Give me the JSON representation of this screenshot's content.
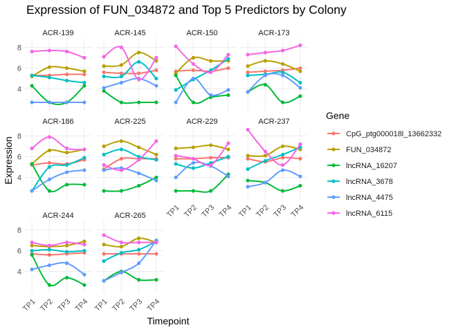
{
  "chart_data": {
    "type": "line",
    "title": "Expression of FUN_034872 and Top 5 Predictors by Colony",
    "xlabel": "Timepoint",
    "ylabel": "Expression",
    "legend_title": "Gene",
    "legend_position": "right",
    "x": [
      "TP1",
      "TP2",
      "TP3",
      "TP4"
    ],
    "y_ticks": [
      4,
      6,
      8
    ],
    "ylim": [
      1.9,
      8.9
    ],
    "grid": true,
    "series_meta": [
      {
        "name": "CpG_ptg000018l_13662332",
        "color": "#F8766D"
      },
      {
        "name": "FUN_034872",
        "color": "#B79F00"
      },
      {
        "name": "lncRNA_16207",
        "color": "#00BA38"
      },
      {
        "name": "lncRNA_3678",
        "color": "#00BFC4"
      },
      {
        "name": "lncRNA_4475",
        "color": "#619CFF"
      },
      {
        "name": "lncRNA_6115",
        "color": "#F564E3"
      }
    ],
    "panels": [
      {
        "colony": "ACR-139",
        "values": [
          [
            5.3,
            5.3,
            5.4,
            5.4
          ],
          [
            5.2,
            6.1,
            6.0,
            5.7
          ],
          [
            4.3,
            2.7,
            2.7,
            4.3
          ],
          [
            5.3,
            5.1,
            4.8,
            4.6
          ],
          [
            2.7,
            2.7,
            2.7,
            2.7
          ],
          [
            7.6,
            7.7,
            7.6,
            7.0
          ]
        ]
      },
      {
        "colony": "ACR-145",
        "values": [
          [
            5.6,
            5.5,
            5.5,
            5.8
          ],
          [
            6.2,
            6.3,
            7.5,
            6.7
          ],
          [
            3.8,
            2.7,
            2.7,
            2.7
          ],
          [
            5.2,
            5.2,
            6.6,
            5.0
          ],
          [
            4.1,
            4.6,
            5.0,
            4.3
          ],
          [
            7.1,
            8.0,
            4.9,
            7.0
          ]
        ]
      },
      {
        "colony": "ACR-150",
        "values": [
          [
            5.7,
            5.8,
            5.7,
            6.0
          ],
          [
            5.5,
            7.0,
            6.7,
            6.7
          ],
          [
            5.3,
            2.7,
            3.2,
            3.4
          ],
          [
            3.9,
            4.9,
            5.8,
            6.9
          ],
          [
            2.7,
            5.0,
            3.4,
            3.9
          ],
          [
            8.1,
            6.4,
            5.6,
            7.3
          ]
        ]
      },
      {
        "colony": "ACR-173",
        "values": [
          [
            5.6,
            5.7,
            5.8,
            6.0
          ],
          [
            6.2,
            6.7,
            6.4,
            5.7
          ],
          [
            3.7,
            4.4,
            2.7,
            3.3
          ],
          [
            5.3,
            5.4,
            5.6,
            4.6
          ],
          [
            3.7,
            5.3,
            5.3,
            4.1
          ],
          [
            7.3,
            7.5,
            7.7,
            8.2
          ]
        ]
      },
      {
        "colony": "ACR-186",
        "values": [
          [
            5.2,
            5.4,
            5.3,
            5.7
          ],
          [
            5.3,
            6.6,
            6.4,
            6.7
          ],
          [
            5.3,
            2.7,
            3.3,
            3.3
          ],
          [
            2.7,
            5.0,
            5.2,
            5.9
          ],
          [
            2.7,
            3.8,
            4.5,
            4.7
          ],
          [
            6.8,
            7.9,
            6.8,
            6.7
          ]
        ]
      },
      {
        "colony": "ACR-225",
        "values": [
          [
            4.8,
            5.8,
            5.8,
            5.8
          ],
          [
            7.0,
            7.5,
            6.9,
            6.2
          ],
          [
            2.7,
            2.7,
            3.2,
            4.0
          ],
          [
            6.2,
            6.7,
            6.0,
            5.7
          ],
          [
            4.7,
            4.9,
            4.4,
            3.7
          ],
          [
            5.2,
            4.7,
            5.7,
            7.5
          ]
        ]
      },
      {
        "colony": "ACR-229",
        "values": [
          [
            5.8,
            5.8,
            5.9,
            5.9
          ],
          [
            6.8,
            6.9,
            7.1,
            6.7
          ],
          [
            2.7,
            2.7,
            2.7,
            4.3
          ],
          [
            5.3,
            4.9,
            5.4,
            6.0
          ],
          [
            4.0,
            5.4,
            5.1,
            4.1
          ],
          [
            6.1,
            5.8,
            5.2,
            7.3
          ]
        ]
      },
      {
        "colony": "ACR-237",
        "values": [
          [
            5.8,
            5.5,
            5.9,
            5.8
          ],
          [
            6.1,
            6.1,
            7.0,
            6.7
          ],
          [
            3.7,
            3.5,
            2.7,
            3.2
          ],
          [
            4.8,
            5.6,
            6.2,
            6.9
          ],
          [
            3.1,
            3.5,
            4.7,
            4.1
          ],
          [
            8.6,
            6.5,
            5.2,
            7.2
          ]
        ]
      },
      {
        "colony": "ACR-244",
        "values": [
          [
            5.7,
            5.6,
            5.7,
            5.8
          ],
          [
            6.5,
            6.4,
            6.5,
            6.9
          ],
          [
            5.6,
            2.7,
            3.4,
            2.7
          ],
          [
            6.0,
            6.1,
            5.9,
            6.0
          ],
          [
            4.2,
            4.6,
            4.8,
            3.7
          ],
          [
            6.8,
            6.5,
            6.8,
            6.6
          ]
        ]
      },
      {
        "colony": "ACR-265",
        "values": [
          [
            5.7,
            5.7,
            5.7,
            5.7
          ],
          [
            6.6,
            6.4,
            7.2,
            6.8
          ],
          [
            3.1,
            4.0,
            3.2,
            3.2
          ],
          [
            5.0,
            5.8,
            6.1,
            6.9
          ],
          [
            3.1,
            3.9,
            4.8,
            7.0
          ],
          [
            7.5,
            6.8,
            6.8,
            6.8
          ]
        ]
      }
    ]
  }
}
